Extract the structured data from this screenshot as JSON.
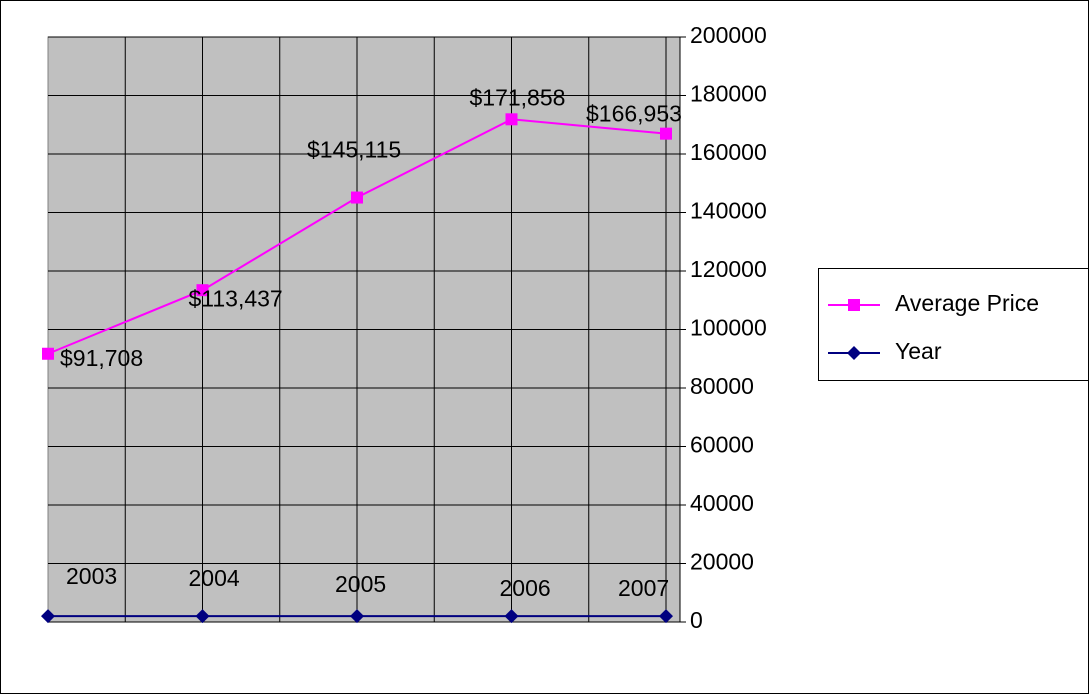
{
  "chart_data": {
    "type": "line",
    "categories": [
      null,
      null,
      null,
      null,
      null
    ],
    "series": [
      {
        "name": "Average Price",
        "color": "#ff00ff",
        "marker": "square",
        "values": [
          91708,
          113437,
          145115,
          171858,
          166953
        ],
        "value_labels": [
          "$91,708",
          "$113,437",
          "$145,115",
          "$171,858",
          "$166,953"
        ]
      },
      {
        "name": "Year",
        "color": "#000080",
        "marker": "diamond",
        "values": [
          2003,
          2004,
          2005,
          2006,
          2007
        ]
      }
    ],
    "ylim": [
      0,
      200000
    ],
    "yticks": [
      0,
      20000,
      40000,
      60000,
      80000,
      100000,
      120000,
      140000,
      160000,
      180000,
      200000
    ],
    "grid": true,
    "legend": "right"
  }
}
